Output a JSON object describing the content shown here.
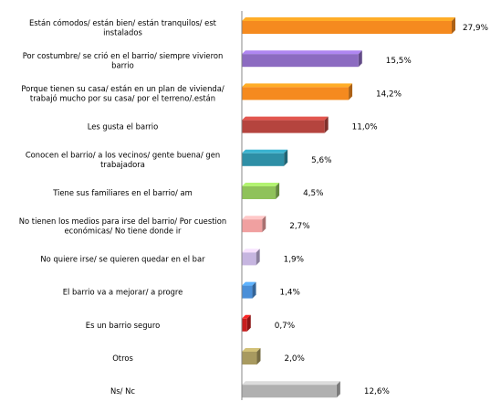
{
  "chart_data": {
    "type": "bar",
    "orientation": "horizontal",
    "title": "",
    "xlabel": "",
    "ylabel": "",
    "grid": false,
    "legend": "none",
    "xlim": [
      0,
      28
    ],
    "categories": [
      {
        "lines": [
          "Están cómodos/ están bien/ están tranquilos/ est",
          "instalados"
        ]
      },
      {
        "lines": [
          "Por costumbre/ se crió en el barrio/ siempre vivieron",
          "barrio"
        ]
      },
      {
        "lines": [
          "Porque tienen su casa/ están en un plan de vivienda/",
          "trabajó mucho por su casa/ por el terreno/.están"
        ]
      },
      {
        "lines": [
          "Les gusta el barrio"
        ]
      },
      {
        "lines": [
          "Conocen el barrio/ a los vecinos/ gente buena/ gen",
          "trabajadora"
        ]
      },
      {
        "lines": [
          "Tiene sus familiares en el barrio/ am"
        ]
      },
      {
        "lines": [
          "No tienen los medios para irse del barrio/ Por cuestion",
          "económicas/ No tiene donde ir"
        ]
      },
      {
        "lines": [
          "No quiere irse/ se quieren quedar en el bar"
        ]
      },
      {
        "lines": [
          "El barrio va a mejorar/ a progre"
        ]
      },
      {
        "lines": [
          "Es un barrio seguro"
        ]
      },
      {
        "lines": [
          "Otros"
        ]
      },
      {
        "lines": [
          "Ns/ Nc"
        ]
      }
    ],
    "values": [
      27.9,
      15.5,
      14.2,
      11.0,
      5.6,
      4.5,
      2.7,
      1.9,
      1.4,
      0.7,
      2.0,
      12.6
    ],
    "value_labels": [
      "27,9%",
      "15,5%",
      "14,2%",
      "11,0%",
      "5,6%",
      "4,5%",
      "2,7%",
      "1,9%",
      "1,4%",
      "0,7%",
      "2,0%",
      "12,6%"
    ],
    "colors": [
      "#f58a1f",
      "#8c6bc1",
      "#f58a1f",
      "#b5443e",
      "#2e8fa6",
      "#8fc25a",
      "#f0a0a0",
      "#c6b5e0",
      "#4a8fd8",
      "#c81e1e",
      "#a89a60",
      "#b0b0b0"
    ]
  }
}
